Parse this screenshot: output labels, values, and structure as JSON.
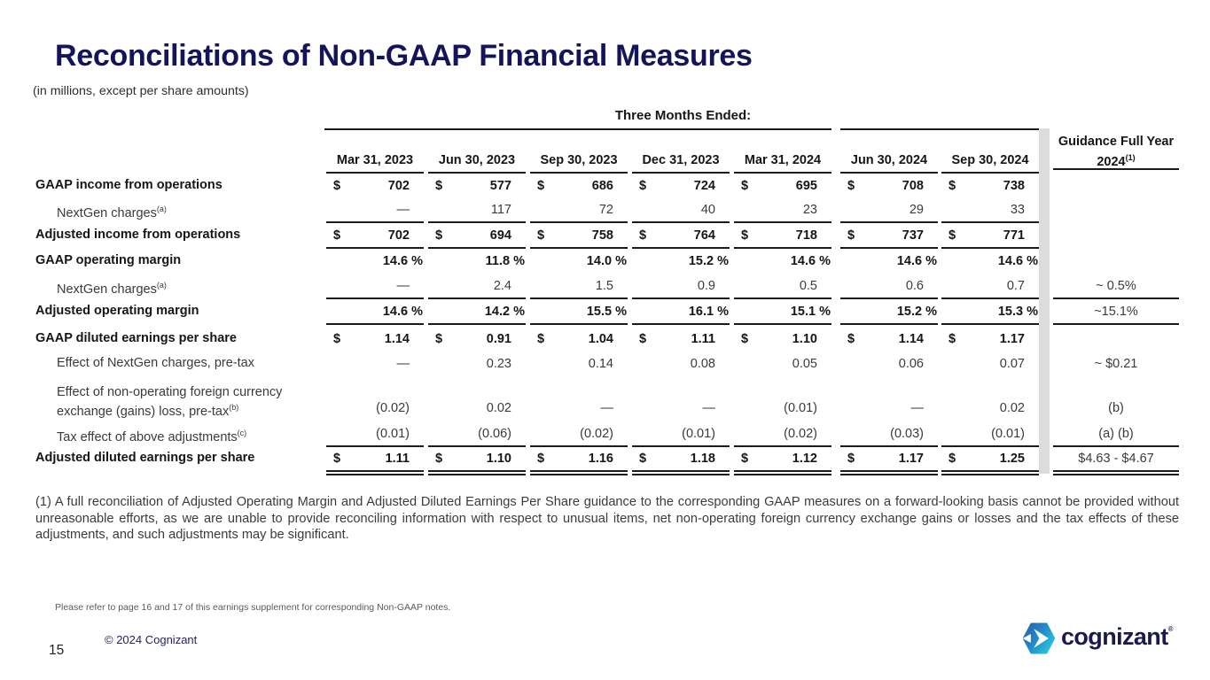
{
  "slide": {
    "title": "Reconciliations of Non-GAAP Financial Measures",
    "subtitle": "(in millions, except per share amounts)",
    "page_number": "15",
    "copyright": "© 2024 Cognizant",
    "note": "Please refer to page 16 and 17 of this earnings supplement for corresponding Non-GAAP notes.",
    "footnote": "(1) A full reconciliation of Adjusted Operating Margin and Adjusted Diluted Earnings Per Share guidance to the corresponding GAAP measures on a forward-looking basis cannot be provided without unreasonable efforts, as we are unable to provide reconciling information with respect to unusual items, net non-operating foreign currency exchange gains or losses and the tax effects of these adjustments, and such adjustments may be significant."
  },
  "logo": {
    "text": "cognizant",
    "registered": "®"
  },
  "colors": {
    "title_navy": "#14145a",
    "line_black": "#1a1a1a",
    "divider_gray": "#dcdcdc",
    "logo_navy": "#1a1a4e",
    "logo_blue": "#2b5aa7",
    "logo_cyan": "#29c8dc"
  },
  "table": {
    "group_header": "Three Months Ended:",
    "columns": [
      "Mar 31, 2023",
      "Jun 30, 2023",
      "Sep 30, 2023",
      "Dec 31, 2023",
      "Mar 31, 2024",
      "Jun 30, 2024",
      "Sep 30, 2024"
    ],
    "guidance_header_line1": "Guidance Full Year",
    "guidance_header_line2": "2024",
    "guidance_header_sup": "(1)",
    "rows": [
      {
        "label": "GAAP income from operations",
        "sup": "",
        "indent": false,
        "bold": true,
        "dollar": true,
        "percent": false,
        "two_line": false,
        "values": [
          "702",
          "577",
          "686",
          "724",
          "695",
          "708",
          "738"
        ],
        "underline": "none",
        "guidance": "",
        "guidance_underline": "none"
      },
      {
        "label": "NextGen charges",
        "sup": "(a)",
        "indent": true,
        "bold": false,
        "dollar": false,
        "percent": false,
        "two_line": false,
        "values": [
          "—",
          "117",
          "72",
          "40",
          "23",
          "29",
          "33"
        ],
        "underline": "single",
        "guidance": "",
        "guidance_underline": "none"
      },
      {
        "label": "Adjusted income from operations",
        "sup": "",
        "indent": false,
        "bold": true,
        "dollar": true,
        "percent": false,
        "two_line": false,
        "values": [
          "702",
          "694",
          "758",
          "764",
          "718",
          "737",
          "771"
        ],
        "underline": "single",
        "guidance": "",
        "guidance_underline": "none"
      },
      {
        "label": "GAAP operating margin",
        "sup": "",
        "indent": false,
        "bold": true,
        "dollar": false,
        "percent": true,
        "two_line": false,
        "values": [
          "14.6 %",
          "11.8 %",
          "14.0 %",
          "15.2 %",
          "14.6 %",
          "14.6 %",
          "14.6 %"
        ],
        "underline": "none",
        "guidance": "",
        "guidance_underline": "none"
      },
      {
        "label": "NextGen charges",
        "sup": "(a)",
        "indent": true,
        "bold": false,
        "dollar": false,
        "percent": false,
        "two_line": false,
        "values": [
          "—",
          "2.4",
          "1.5",
          "0.9",
          "0.5",
          "0.6",
          "0.7"
        ],
        "underline": "single",
        "guidance": "~ 0.5%",
        "guidance_underline": "single"
      },
      {
        "label": "Adjusted operating margin",
        "sup": "",
        "indent": false,
        "bold": true,
        "dollar": false,
        "percent": true,
        "two_line": false,
        "values": [
          "14.6 %",
          "14.2 %",
          "15.5 %",
          "16.1 %",
          "15.1 %",
          "15.2 %",
          "15.3 %"
        ],
        "underline": "single",
        "guidance": "~15.1%",
        "guidance_underline": "single"
      },
      {
        "label": "GAAP diluted earnings per share",
        "sup": "",
        "indent": false,
        "bold": true,
        "dollar": true,
        "percent": false,
        "two_line": false,
        "values": [
          "1.14",
          "0.91",
          "1.04",
          "1.11",
          "1.10",
          "1.14",
          "1.17"
        ],
        "underline": "none",
        "guidance": "",
        "guidance_underline": "none"
      },
      {
        "label": "Effect of NextGen charges, pre-tax",
        "sup": "",
        "indent": true,
        "bold": false,
        "dollar": false,
        "percent": false,
        "two_line": false,
        "values": [
          "—",
          "0.23",
          "0.14",
          "0.08",
          "0.05",
          "0.06",
          "0.07"
        ],
        "underline": "none",
        "guidance": "~ $0.21",
        "guidance_underline": "none"
      },
      {
        "label": "Effect of non-operating foreign currency exchange (gains) loss, pre-tax",
        "sup": "(b)",
        "indent": true,
        "bold": false,
        "dollar": false,
        "percent": false,
        "two_line": true,
        "values": [
          "(0.02)",
          "0.02",
          "—",
          "—",
          "(0.01)",
          "—",
          "0.02"
        ],
        "underline": "none",
        "guidance": "(b)",
        "guidance_underline": "none"
      },
      {
        "label": "Tax effect of above adjustments",
        "sup": "(c)",
        "indent": true,
        "bold": false,
        "dollar": false,
        "percent": false,
        "two_line": false,
        "values": [
          "(0.01)",
          "(0.06)",
          "(0.02)",
          "(0.01)",
          "(0.02)",
          "(0.03)",
          "(0.01)"
        ],
        "underline": "single",
        "guidance": "(a) (b)",
        "guidance_underline": "single"
      },
      {
        "label": "Adjusted diluted earnings per share",
        "sup": "",
        "indent": false,
        "bold": true,
        "dollar": true,
        "percent": false,
        "two_line": false,
        "values": [
          "1.11",
          "1.10",
          "1.16",
          "1.18",
          "1.12",
          "1.17",
          "1.25"
        ],
        "underline": "double",
        "guidance": "$4.63 - $4.67",
        "guidance_underline": "double"
      }
    ]
  }
}
